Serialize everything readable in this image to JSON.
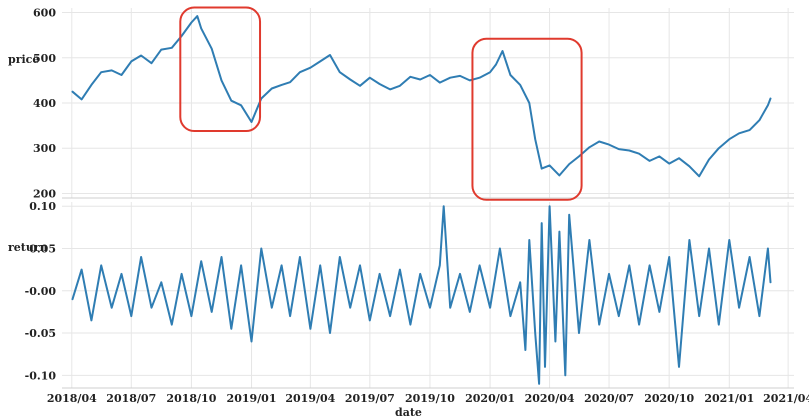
{
  "chart_data": [
    {
      "type": "line",
      "ylabel": "price",
      "ylim": [
        190,
        610
      ],
      "yticks": [
        "200",
        "300",
        "400",
        "500",
        "600"
      ],
      "grid": true,
      "series": [
        {
          "x": [
            "2018-04-02",
            "2018-04-16",
            "2018-05-01",
            "2018-05-16",
            "2018-06-01",
            "2018-06-16",
            "2018-07-01",
            "2018-07-16",
            "2018-08-01",
            "2018-08-16",
            "2018-09-01",
            "2018-09-16",
            "2018-10-01",
            "2018-10-10",
            "2018-10-16",
            "2018-11-01",
            "2018-11-16",
            "2018-12-01",
            "2018-12-16",
            "2019-01-01",
            "2019-01-16",
            "2019-02-01",
            "2019-02-16",
            "2019-03-01",
            "2019-03-16",
            "2019-04-01",
            "2019-04-16",
            "2019-05-01",
            "2019-05-16",
            "2019-06-01",
            "2019-06-16",
            "2019-07-01",
            "2019-07-16",
            "2019-08-01",
            "2019-08-16",
            "2019-09-01",
            "2019-09-16",
            "2019-10-01",
            "2019-10-16",
            "2019-11-01",
            "2019-11-16",
            "2019-12-01",
            "2019-12-16",
            "2020-01-01",
            "2020-01-10",
            "2020-01-20",
            "2020-02-01",
            "2020-02-16",
            "2020-03-01",
            "2020-03-10",
            "2020-03-20",
            "2020-04-01",
            "2020-04-16",
            "2020-05-01",
            "2020-05-16",
            "2020-06-01",
            "2020-06-16",
            "2020-07-01",
            "2020-07-16",
            "2020-08-01",
            "2020-08-16",
            "2020-09-01",
            "2020-09-16",
            "2020-10-01",
            "2020-10-16",
            "2020-11-01",
            "2020-11-16",
            "2020-12-01",
            "2020-12-16",
            "2021-01-01",
            "2021-01-16",
            "2021-02-01",
            "2021-02-16",
            "2021-03-01",
            "2021-03-05"
          ],
          "values": [
            425,
            408,
            440,
            468,
            472,
            462,
            492,
            505,
            488,
            518,
            522,
            548,
            578,
            592,
            565,
            520,
            450,
            405,
            395,
            358,
            410,
            432,
            440,
            446,
            468,
            478,
            492,
            506,
            468,
            452,
            438,
            456,
            442,
            430,
            438,
            458,
            452,
            462,
            445,
            456,
            460,
            450,
            456,
            468,
            485,
            515,
            462,
            440,
            400,
            320,
            255,
            262,
            240,
            265,
            282,
            302,
            315,
            308,
            298,
            295,
            288,
            272,
            282,
            266,
            278,
            260,
            238,
            275,
            300,
            320,
            333,
            340,
            362,
            395,
            410
          ]
        }
      ],
      "highlights": [
        {
          "x0": "2018-09-14",
          "x1": "2019-01-14",
          "y0": 338,
          "y1": 611
        },
        {
          "x0": "2019-12-05",
          "x1": "2020-05-20",
          "y0": 186,
          "y1": 542
        }
      ]
    },
    {
      "type": "line",
      "ylabel": "return",
      "xlabel": "date",
      "ylim": [
        -0.115,
        0.105
      ],
      "yticks": [
        "0.10",
        "0.05",
        "-0.00",
        "-0.05",
        "-0.10"
      ],
      "grid": true,
      "xticks": [
        "2018/04",
        "2018/07",
        "2018/10",
        "2019/01",
        "2019/04",
        "2019/07",
        "2019/10",
        "2020/01",
        "2020/04",
        "2020/07",
        "2020/10",
        "2021/01",
        "2021/04"
      ],
      "series": [
        {
          "x": [
            "2018-04-02",
            "2018-04-16",
            "2018-05-01",
            "2018-05-16",
            "2018-06-01",
            "2018-06-16",
            "2018-07-01",
            "2018-07-16",
            "2018-08-01",
            "2018-08-16",
            "2018-09-01",
            "2018-09-16",
            "2018-10-01",
            "2018-10-16",
            "2018-11-01",
            "2018-11-16",
            "2018-12-01",
            "2018-12-16",
            "2019-01-01",
            "2019-01-16",
            "2019-02-01",
            "2019-02-16",
            "2019-03-01",
            "2019-03-16",
            "2019-04-01",
            "2019-04-16",
            "2019-05-01",
            "2019-05-16",
            "2019-06-01",
            "2019-06-16",
            "2019-07-01",
            "2019-07-16",
            "2019-08-01",
            "2019-08-16",
            "2019-09-01",
            "2019-09-16",
            "2019-10-01",
            "2019-10-16",
            "2019-10-22",
            "2019-11-01",
            "2019-11-16",
            "2019-12-01",
            "2019-12-16",
            "2020-01-01",
            "2020-01-16",
            "2020-02-01",
            "2020-02-16",
            "2020-02-24",
            "2020-03-01",
            "2020-03-10",
            "2020-03-16",
            "2020-03-20",
            "2020-03-25",
            "2020-04-01",
            "2020-04-10",
            "2020-04-16",
            "2020-04-25",
            "2020-05-01",
            "2020-05-16",
            "2020-06-01",
            "2020-06-16",
            "2020-07-01",
            "2020-07-16",
            "2020-08-01",
            "2020-08-16",
            "2020-09-01",
            "2020-09-16",
            "2020-10-01",
            "2020-10-16",
            "2020-11-01",
            "2020-11-16",
            "2020-12-01",
            "2020-12-16",
            "2021-01-01",
            "2021-01-16",
            "2021-02-01",
            "2021-02-16",
            "2021-03-01",
            "2021-03-05"
          ],
          "values": [
            -0.01,
            0.025,
            -0.035,
            0.03,
            -0.02,
            0.02,
            -0.03,
            0.04,
            -0.02,
            0.01,
            -0.04,
            0.02,
            -0.03,
            0.035,
            -0.025,
            0.04,
            -0.045,
            0.03,
            -0.06,
            0.05,
            -0.02,
            0.03,
            -0.03,
            0.04,
            -0.045,
            0.03,
            -0.05,
            0.04,
            -0.02,
            0.03,
            -0.035,
            0.02,
            -0.03,
            0.025,
            -0.04,
            0.02,
            -0.02,
            0.03,
            0.1,
            -0.02,
            0.02,
            -0.025,
            0.03,
            -0.02,
            0.05,
            -0.03,
            0.01,
            -0.07,
            0.06,
            -0.05,
            -0.11,
            0.08,
            -0.09,
            0.1,
            -0.06,
            0.07,
            -0.1,
            0.09,
            -0.05,
            0.06,
            -0.04,
            0.02,
            -0.03,
            0.03,
            -0.04,
            0.03,
            -0.025,
            0.04,
            -0.09,
            0.06,
            -0.03,
            0.05,
            -0.04,
            0.06,
            -0.02,
            0.04,
            -0.03,
            0.05,
            0.01
          ]
        }
      ]
    }
  ]
}
